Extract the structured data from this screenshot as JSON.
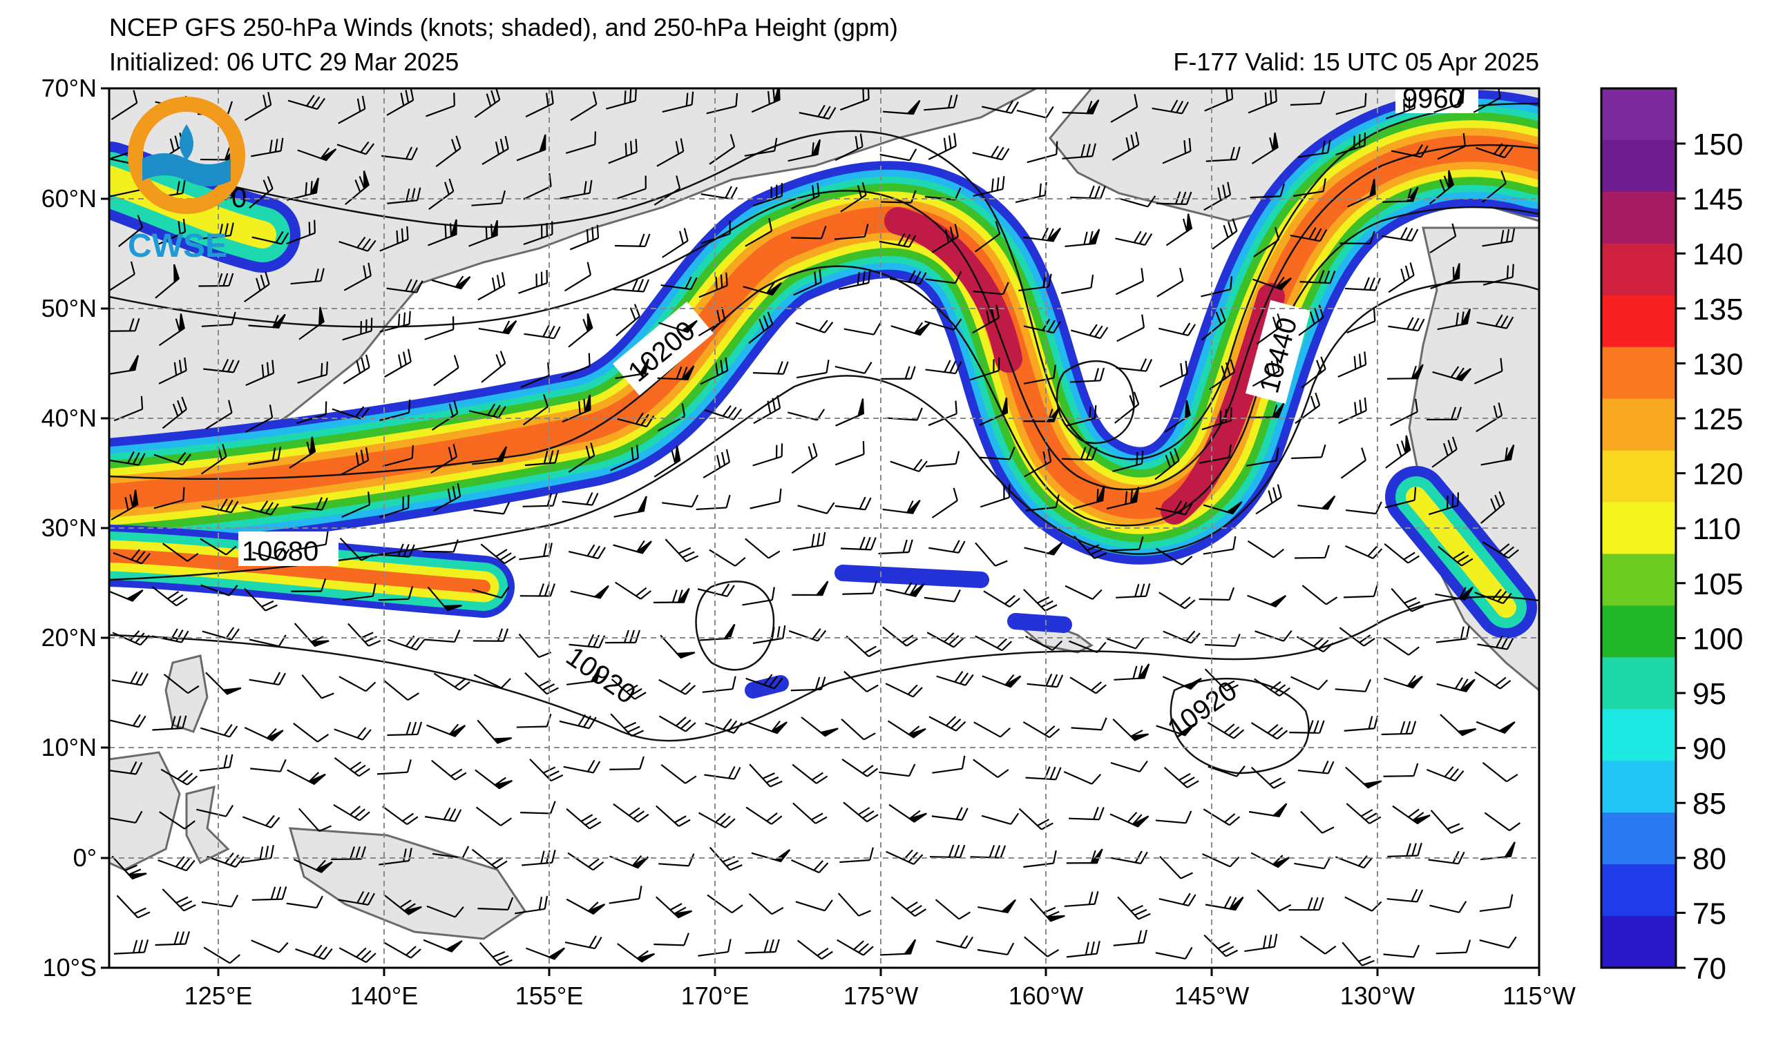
{
  "header": {
    "title": "NCEP GFS 250-hPa Winds (knots; shaded), and 250-hPa Height (gpm)",
    "initialized": "Initialized: 06 UTC 29 Mar 2025",
    "valid": "F-177  Valid: 15 UTC 05 Apr 2025"
  },
  "map": {
    "lat_labels": [
      "70°N",
      "60°N",
      "50°N",
      "40°N",
      "30°N",
      "20°N",
      "10°N",
      "0°",
      "10°S"
    ],
    "lon_labels": [
      "125°E",
      "140°E",
      "155°E",
      "170°E",
      "175°W",
      "160°W",
      "145°W",
      "130°W",
      "115°W"
    ],
    "contour_labels": [
      "9960",
      "10200",
      "10440",
      "10680",
      "10920",
      "10920",
      "0"
    ]
  },
  "logo": {
    "text": "CWSE"
  },
  "colorbar": {
    "labels": [
      "150",
      "145",
      "140",
      "135",
      "130",
      "125",
      "120",
      "110",
      "105",
      "100",
      "95",
      "90",
      "85",
      "80",
      "75",
      "70"
    ],
    "colors": [
      "#2a18c8",
      "#1f3ce8",
      "#2a7af2",
      "#22c6f4",
      "#1ee8e2",
      "#1ed8a8",
      "#22b82a",
      "#6ccc22",
      "#f4f41e",
      "#f8d81e",
      "#f8a820",
      "#f87820",
      "#f82020",
      "#d02040",
      "#a81c62",
      "#6e1c8e",
      "#7a2a9a"
    ]
  }
}
